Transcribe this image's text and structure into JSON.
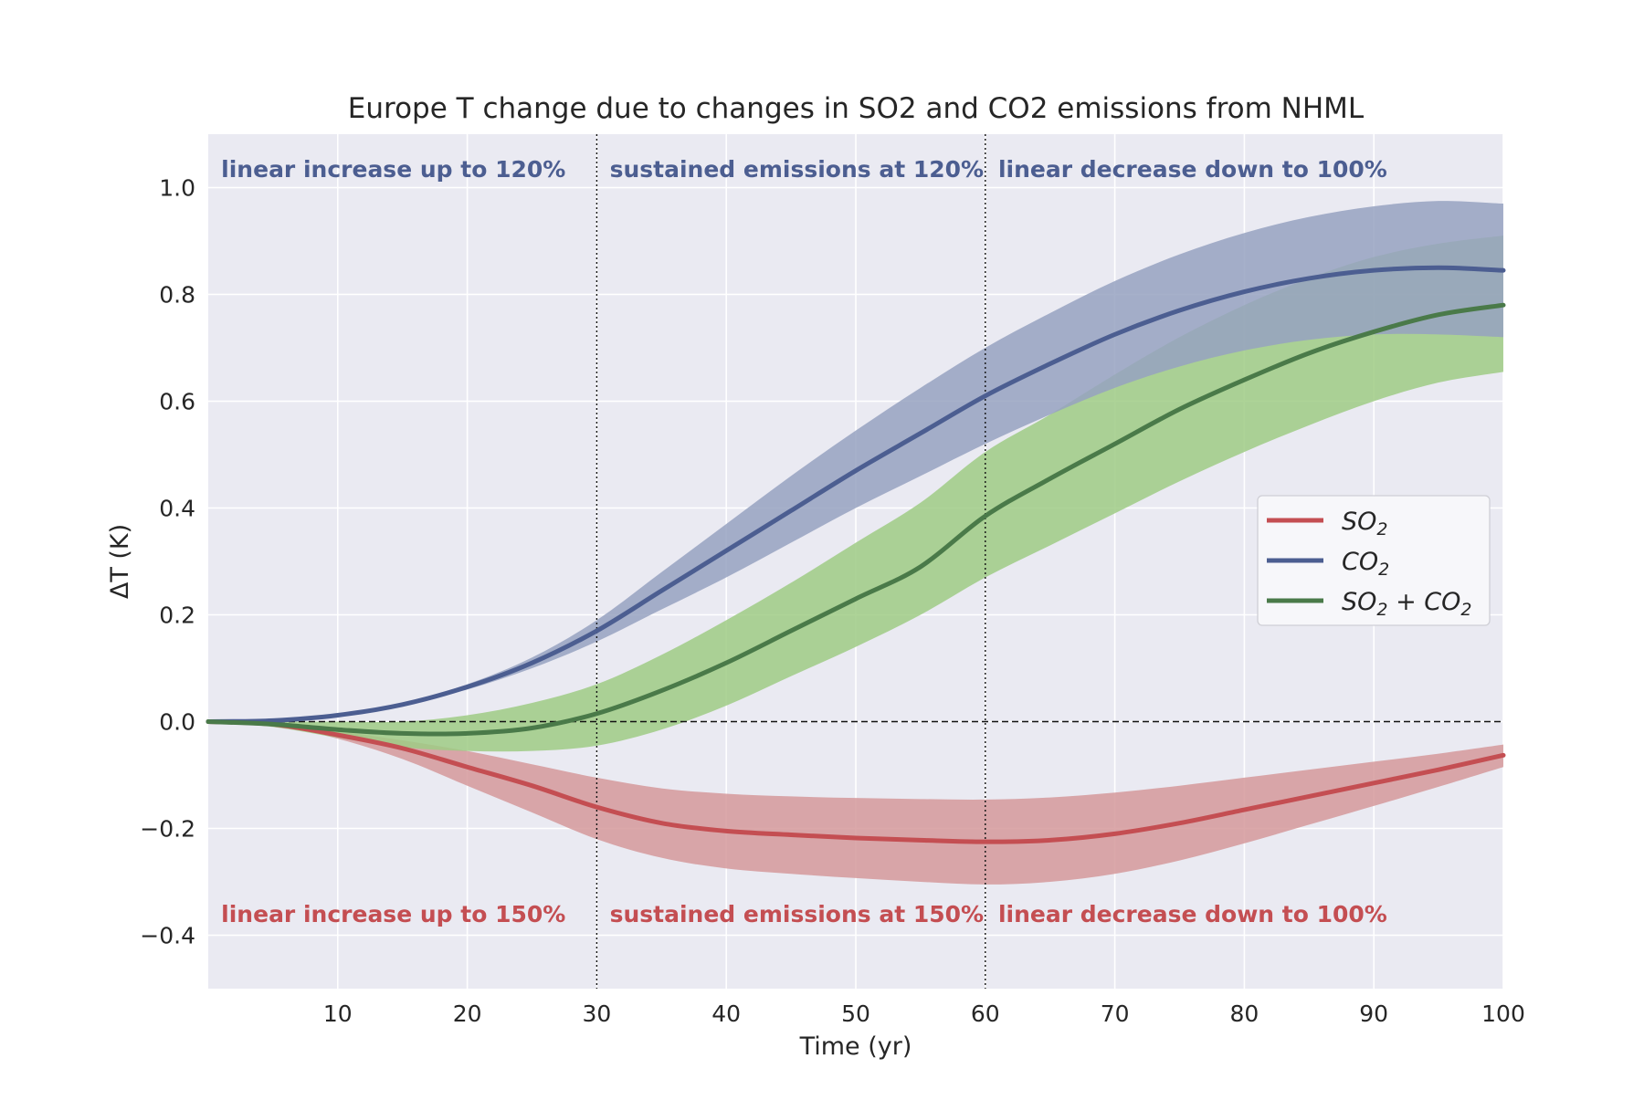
{
  "chart_data": {
    "type": "line",
    "title": "Europe T change due to changes in SO2 and CO2 emissions from NHML",
    "xlabel": "Time (yr)",
    "ylabel": "ΔT (K)",
    "xlim": [
      0,
      100
    ],
    "ylim": [
      -0.5,
      1.1
    ],
    "xticks": [
      10,
      20,
      30,
      40,
      50,
      60,
      70,
      80,
      90,
      100
    ],
    "yticks": [
      -0.4,
      -0.2,
      0.0,
      0.2,
      0.4,
      0.6,
      0.8,
      1.0
    ],
    "ytick_labels": [
      "−0.4",
      "−0.2",
      "0.0",
      "0.2",
      "0.4",
      "0.6",
      "0.8",
      "1.0"
    ],
    "grid": true,
    "legend_position": "center-right",
    "vlines": [
      30,
      60
    ],
    "hline": 0,
    "x": [
      0,
      5,
      10,
      15,
      20,
      25,
      30,
      35,
      40,
      45,
      50,
      55,
      60,
      65,
      70,
      75,
      80,
      85,
      90,
      95,
      100
    ],
    "series": [
      {
        "name": "SO₂",
        "legend_main": "SO",
        "legend_sub": "2",
        "legend_tail": "",
        "color": "#c44e52",
        "band_color": "#d5999b",
        "values": [
          0.0,
          -0.005,
          -0.025,
          -0.05,
          -0.085,
          -0.12,
          -0.16,
          -0.19,
          -0.205,
          -0.212,
          -0.218,
          -0.222,
          -0.225,
          -0.222,
          -0.21,
          -0.19,
          -0.165,
          -0.14,
          -0.115,
          -0.09,
          -0.063
        ],
        "lower": [
          0.0,
          -0.007,
          -0.032,
          -0.07,
          -0.12,
          -0.17,
          -0.22,
          -0.255,
          -0.275,
          -0.285,
          -0.293,
          -0.3,
          -0.305,
          -0.3,
          -0.285,
          -0.26,
          -0.228,
          -0.193,
          -0.158,
          -0.122,
          -0.085
        ],
        "upper": [
          0.0,
          -0.003,
          -0.018,
          -0.035,
          -0.055,
          -0.08,
          -0.105,
          -0.125,
          -0.135,
          -0.14,
          -0.143,
          -0.145,
          -0.146,
          -0.142,
          -0.133,
          -0.12,
          -0.105,
          -0.09,
          -0.075,
          -0.06,
          -0.043
        ]
      },
      {
        "name": "CO₂",
        "legend_main": "CO",
        "legend_sub": "2",
        "legend_tail": "",
        "color": "#4c5e91",
        "band_color": "#96a2c1",
        "values": [
          0.0,
          0.002,
          0.012,
          0.032,
          0.065,
          0.11,
          0.17,
          0.245,
          0.32,
          0.395,
          0.47,
          0.54,
          0.61,
          0.67,
          0.725,
          0.77,
          0.805,
          0.83,
          0.845,
          0.85,
          0.845
        ],
        "lower": [
          0.0,
          0.002,
          0.011,
          0.03,
          0.06,
          0.1,
          0.15,
          0.21,
          0.27,
          0.335,
          0.4,
          0.46,
          0.52,
          0.575,
          0.625,
          0.665,
          0.695,
          0.715,
          0.725,
          0.725,
          0.72
        ],
        "upper": [
          0.0,
          0.002,
          0.013,
          0.035,
          0.07,
          0.12,
          0.19,
          0.28,
          0.37,
          0.46,
          0.545,
          0.625,
          0.7,
          0.765,
          0.825,
          0.875,
          0.915,
          0.945,
          0.965,
          0.975,
          0.97
        ]
      },
      {
        "name": "SO₂ + CO₂",
        "legend_main": "SO",
        "legend_sub": "2",
        "legend_tail": " + CO",
        "legend_sub2": "2",
        "color": "#4a7a49",
        "band_color": "#9fcb85",
        "values": [
          0.0,
          -0.005,
          -0.015,
          -0.022,
          -0.022,
          -0.012,
          0.015,
          0.058,
          0.11,
          0.17,
          0.23,
          0.29,
          0.385,
          0.455,
          0.52,
          0.585,
          0.64,
          0.69,
          0.73,
          0.762,
          0.78
        ],
        "lower": [
          0.0,
          -0.01,
          -0.03,
          -0.048,
          -0.055,
          -0.055,
          -0.045,
          -0.015,
          0.03,
          0.085,
          0.14,
          0.2,
          0.27,
          0.33,
          0.39,
          0.45,
          0.505,
          0.555,
          0.6,
          0.635,
          0.655
        ],
        "upper": [
          0.0,
          0.0,
          0.0,
          0.0,
          0.012,
          0.035,
          0.07,
          0.125,
          0.19,
          0.26,
          0.335,
          0.41,
          0.505,
          0.575,
          0.65,
          0.72,
          0.78,
          0.83,
          0.87,
          0.895,
          0.91
        ]
      }
    ],
    "annotations": [
      {
        "text": "linear increase up to 120%",
        "x": 1,
        "y": 1.02,
        "color": "#4c5e91"
      },
      {
        "text": "sustained emissions at 120%",
        "x": 31,
        "y": 1.02,
        "color": "#4c5e91"
      },
      {
        "text": "linear decrease down to 100%",
        "x": 61,
        "y": 1.02,
        "color": "#4c5e91"
      },
      {
        "text": "linear increase up to 150%",
        "x": 1,
        "y": -0.375,
        "color": "#c44e52"
      },
      {
        "text": "sustained emissions at 150%",
        "x": 31,
        "y": -0.375,
        "color": "#c44e52"
      },
      {
        "text": "linear decrease down to 100%",
        "x": 61,
        "y": -0.375,
        "color": "#c44e52"
      }
    ]
  }
}
